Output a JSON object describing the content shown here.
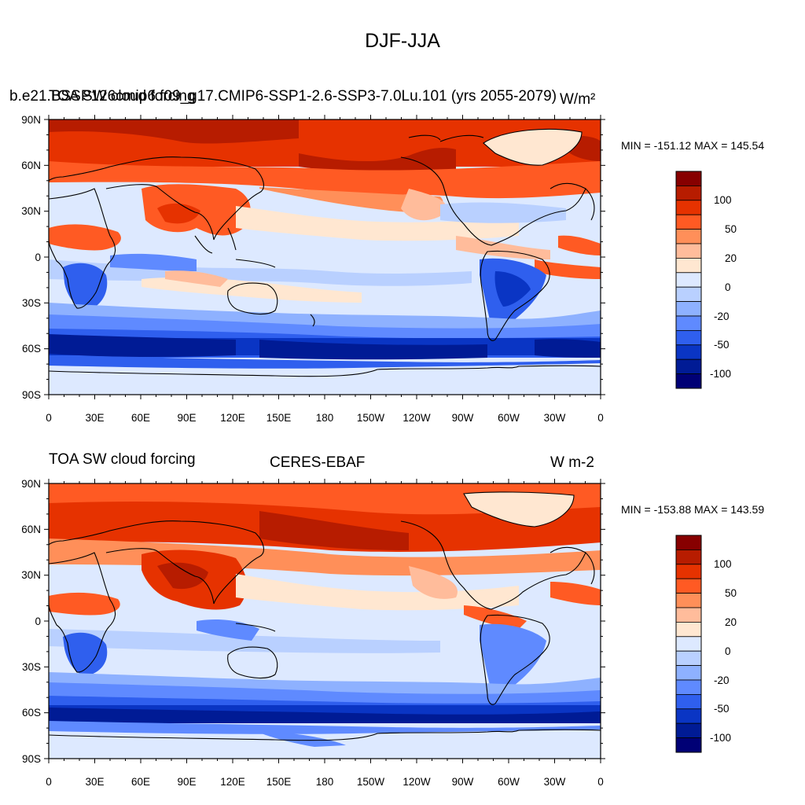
{
  "figure": {
    "title": "DJF-JJA"
  },
  "lat_ticks": [
    "90N",
    "60N",
    "30N",
    "0",
    "30S",
    "60S",
    "90S"
  ],
  "lon_ticks": [
    "0",
    "30E",
    "60E",
    "90E",
    "120E",
    "150E",
    "180",
    "150W",
    "120W",
    "90W",
    "60W",
    "30W",
    "0"
  ],
  "colorbar": {
    "colors": [
      "#870000",
      "#b71c00",
      "#e63200",
      "#ff5a23",
      "#ff8f59",
      "#ffbc9b",
      "#ffe7d1",
      "#dde9ff",
      "#b9d0ff",
      "#8eb1ff",
      "#5f8aff",
      "#2f5fee",
      "#0a35c4",
      "#001b95",
      "#000075"
    ],
    "tick_labels": [
      "100",
      "50",
      "20",
      "0",
      "-20",
      "-50",
      "-100"
    ]
  },
  "panels": [
    {
      "left_label": "TOA SW cloud forcing",
      "center_label": "b.e21.BSSP126cmip6.f09_g17.CMIP6-SSP1-2.6-SSP3-7.0Lu.101 (yrs 2055-2079)",
      "right_label": "W/m²",
      "minmax": "MIN = -151.12 MAX = 145.54"
    },
    {
      "left_label": "TOA SW cloud forcing",
      "center_label": "CERES-EBAF",
      "right_label": "W m-2",
      "minmax": "MIN = -153.88 MAX = 143.59"
    }
  ]
}
